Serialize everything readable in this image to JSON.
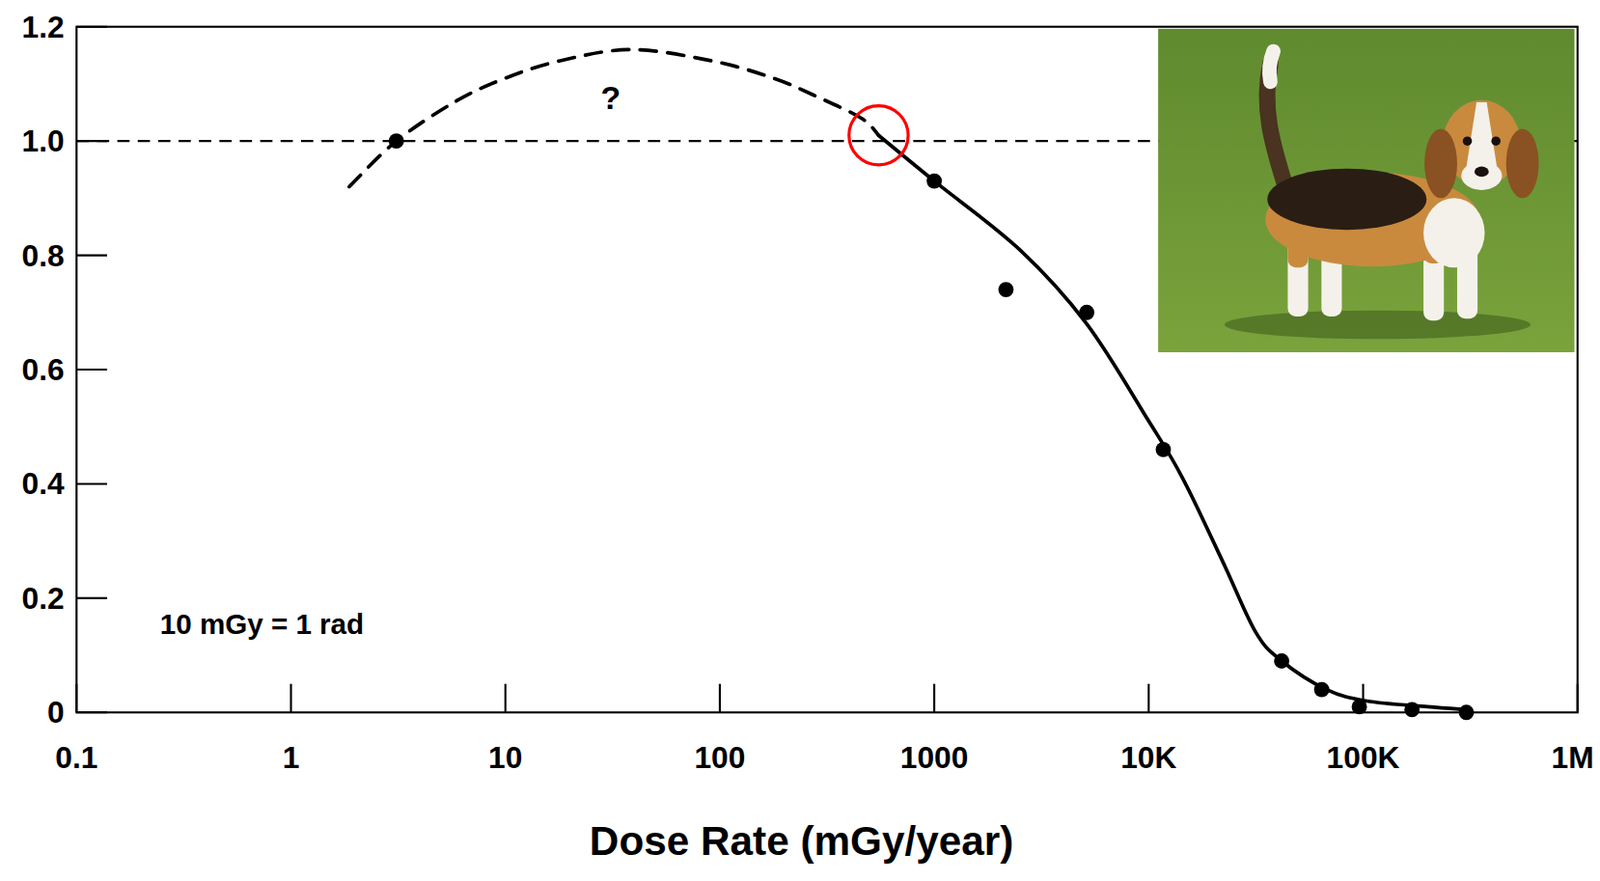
{
  "chart_data": {
    "type": "scatter",
    "x_label": "Dose Rate (mGy/year)",
    "log": "x",
    "grid": false,
    "xlim": [
      0.1,
      1000000
    ],
    "ylim": [
      0,
      1.2
    ],
    "xticks": [
      0.1,
      1,
      10,
      100,
      1000,
      {
        "value": 10000,
        "label": "10K"
      },
      {
        "value": 100000,
        "label": "100K"
      },
      {
        "value": 1000000,
        "label": "1M"
      }
    ],
    "yticks": [
      0,
      0.2,
      0.4,
      0.6,
      0.8,
      {
        "value": 1,
        "label": "1.0"
      },
      1.2
    ],
    "reference_y": 1,
    "series": [
      {
        "type": "scatter",
        "marker": "circle",
        "color": "#000000",
        "x": [
          3.1,
          1000,
          2160,
          5140,
          11700,
          41700,
          64100,
          96000,
          169000,
          303000
        ],
        "values": [
          1.0,
          0.93,
          0.74,
          0.7,
          0.46,
          0.09,
          0.04,
          0.01,
          0.005,
          0
        ]
      },
      {
        "type": "line",
        "line_style": "dashed",
        "color": "#000000",
        "x": [
          1.87,
          3.1,
          5.9,
          10,
          17.8,
          38.5,
          92.7,
          178,
          275,
          457,
          550
        ],
        "values": [
          0.92,
          1.0,
          1.07,
          1.11,
          1.14,
          1.16,
          1.14,
          1.11,
          1.08,
          1.04,
          1.01
        ]
      },
      {
        "type": "line",
        "line_style": "solid",
        "color": "#000000",
        "x": [
          550,
          1000,
          2500,
          5140,
          10000,
          14400,
          22400,
          31600,
          41700,
          67500,
          104000,
          200000,
          303000
        ],
        "values": [
          1.01,
          0.93,
          0.81,
          0.68,
          0.51,
          0.41,
          0.26,
          0.14,
          0.09,
          0.04,
          0.02,
          0.01,
          0.005
        ]
      },
      {
        "type": "scatter",
        "marker": "ring",
        "color": "#ff0000",
        "x": [
          550
        ],
        "values": [
          1.01
        ]
      }
    ],
    "annotations": [
      {
        "text": "?",
        "x": 31,
        "y": 1.077
      },
      {
        "text": "10 mGy = 1 rad",
        "x": 0.245,
        "y": 0.155
      }
    ]
  }
}
